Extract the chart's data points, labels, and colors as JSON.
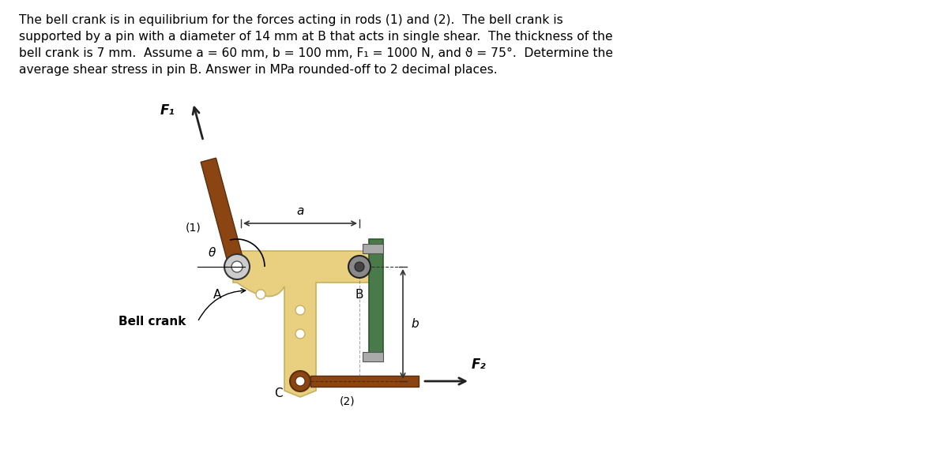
{
  "title_text": "The bell crank is in equilibrium for the forces acting in rods (1) and (2).  The bell crank is\nsupported by a pin with a diameter of 14 mm at B that acts in single shear.  The thickness of the\nbell crank is 7 mm.  Assume a = 60 mm, b = 100 mm, F₁ = 1000 N, and ϑ = 75°.  Determine the\naverage shear stress in pin B. Answer in MPa rounded-off to 2 decimal places.",
  "bg_color": "#ffffff",
  "text_color": "#000000",
  "crank_color": "#e8d080",
  "crank_edge_color": "#c8b060",
  "rod1_color": "#8B4513",
  "rod2_color": "#8B4513",
  "wall_color": "#4a7a4a",
  "pin_color": "#888888",
  "pin_dark": "#444444",
  "arrow_color": "#222222",
  "dim_line_color": "#333333",
  "label_F1": "F₁",
  "label_F2": "F₂",
  "label_a": "a",
  "label_b": "b",
  "label_theta": "θ",
  "label_A": "A",
  "label_B": "B",
  "label_C": "C",
  "label_1": "(1)",
  "label_2": "(2)",
  "label_bell_crank": "Bell crank"
}
